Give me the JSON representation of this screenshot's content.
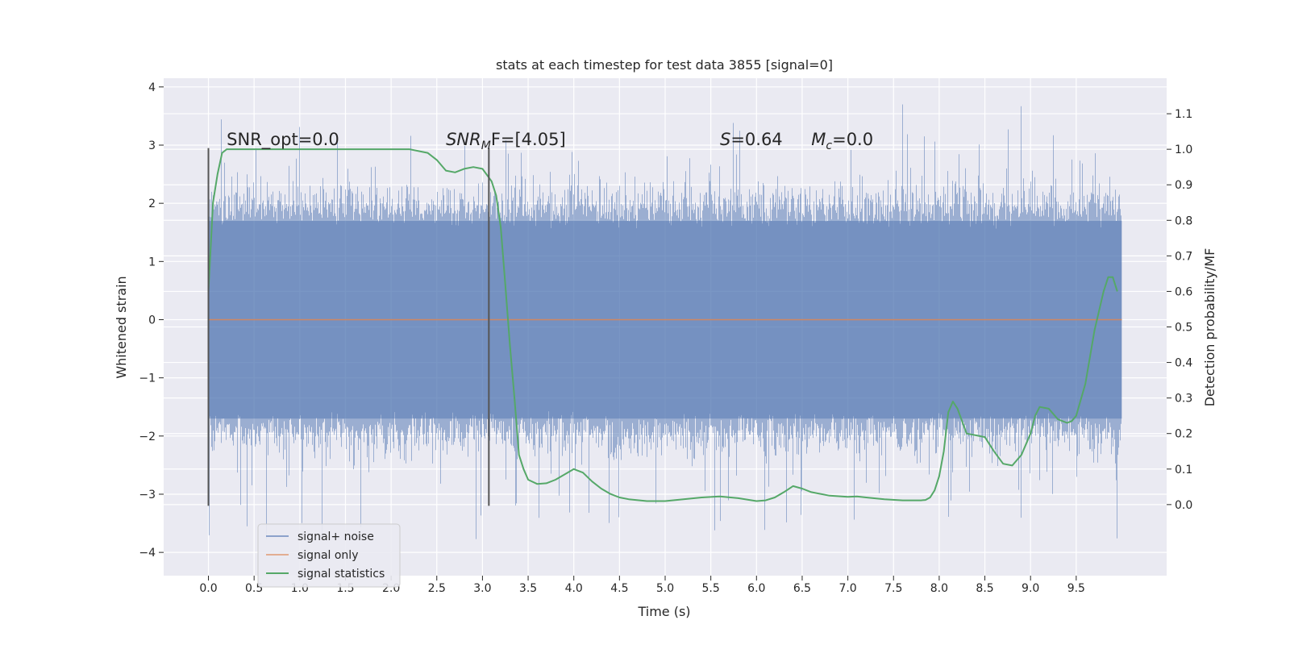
{
  "chart_data": {
    "type": "line",
    "title": "stats at each timestep for test data 3855 [signal=0]",
    "xlabel": "Time (s)",
    "ylabel_left": "Whitened strain",
    "ylabel_right": "Detection probability/MF",
    "xlim": [
      -0.49,
      10.49
    ],
    "ylim_left": [
      -4.4,
      4.15
    ],
    "ylim_right": [
      -0.2,
      1.2
    ],
    "x_ticks": [
      "0.0",
      "0.5",
      "1.0",
      "1.5",
      "2.0",
      "2.5",
      "3.0",
      "3.5",
      "4.0",
      "4.5",
      "5.0",
      "5.5",
      "6.0",
      "6.5",
      "7.0",
      "7.5",
      "8.0",
      "8.5",
      "9.0",
      "9.5"
    ],
    "x_tick_values": [
      0,
      0.5,
      1,
      1.5,
      2,
      2.5,
      3,
      3.5,
      4,
      4.5,
      5,
      5.5,
      6,
      6.5,
      7,
      7.5,
      8,
      8.5,
      9,
      9.5
    ],
    "y_left_ticks": [
      "−4",
      "−3",
      "−2",
      "−1",
      "0",
      "1",
      "2",
      "3",
      "4"
    ],
    "y_left_tick_values": [
      -4,
      -3,
      -2,
      -1,
      0,
      1,
      2,
      3,
      4
    ],
    "y_right_ticks": [
      "0.0",
      "0.1",
      "0.2",
      "0.3",
      "0.4",
      "0.5",
      "0.6",
      "0.7",
      "0.8",
      "0.9",
      "1.0",
      "1.1"
    ],
    "y_right_tick_values": [
      0,
      0.1,
      0.2,
      0.3,
      0.4,
      0.5,
      0.6,
      0.7,
      0.8,
      0.9,
      1.0,
      1.1
    ],
    "grid": true,
    "legend_position": "lower-left",
    "series": [
      {
        "name": "signal+ noise",
        "axis": "left",
        "color": "#4c72b0",
        "kind": "noise",
        "x_range": [
          0,
          10
        ],
        "envelope": {
          "typical_upper": 2.0,
          "typical_lower": -2.0,
          "max": 3.8,
          "min": -4.05
        }
      },
      {
        "name": "signal only",
        "axis": "left",
        "color": "#dd8452",
        "x": [
          0,
          10
        ],
        "y": [
          0,
          0
        ]
      },
      {
        "name": "signal statistics",
        "axis": "right",
        "color": "#55a868",
        "x": [
          0,
          0.05,
          0.1,
          0.15,
          0.2,
          0.3,
          0.5,
          1.0,
          1.5,
          2.0,
          2.2,
          2.4,
          2.5,
          2.6,
          2.7,
          2.8,
          2.9,
          3.0,
          3.1,
          3.15,
          3.2,
          3.25,
          3.3,
          3.35,
          3.4,
          3.45,
          3.5,
          3.6,
          3.7,
          3.8,
          3.9,
          4.0,
          4.1,
          4.2,
          4.3,
          4.4,
          4.5,
          4.6,
          4.8,
          5.0,
          5.2,
          5.4,
          5.6,
          5.8,
          6.0,
          6.1,
          6.2,
          6.3,
          6.4,
          6.5,
          6.6,
          6.8,
          7.0,
          7.1,
          7.2,
          7.4,
          7.6,
          7.8,
          7.85,
          7.9,
          7.95,
          8.0,
          8.05,
          8.1,
          8.15,
          8.2,
          8.3,
          8.4,
          8.5,
          8.6,
          8.7,
          8.8,
          8.9,
          9.0,
          9.05,
          9.1,
          9.2,
          9.3,
          9.4,
          9.45,
          9.5,
          9.6,
          9.7,
          9.8,
          9.85,
          9.9,
          9.95
        ],
        "y": [
          0.6,
          0.85,
          0.93,
          0.99,
          1.0,
          1.0,
          1.0,
          1.0,
          1.0,
          1.0,
          1.0,
          0.99,
          0.97,
          0.94,
          0.935,
          0.945,
          0.95,
          0.945,
          0.91,
          0.87,
          0.78,
          0.62,
          0.45,
          0.3,
          0.14,
          0.1,
          0.07,
          0.058,
          0.06,
          0.07,
          0.085,
          0.1,
          0.09,
          0.065,
          0.045,
          0.03,
          0.02,
          0.015,
          0.01,
          0.01,
          0.015,
          0.02,
          0.023,
          0.018,
          0.01,
          0.012,
          0.02,
          0.035,
          0.052,
          0.045,
          0.035,
          0.025,
          0.022,
          0.023,
          0.02,
          0.015,
          0.012,
          0.012,
          0.013,
          0.02,
          0.04,
          0.08,
          0.15,
          0.26,
          0.29,
          0.27,
          0.2,
          0.195,
          0.19,
          0.15,
          0.115,
          0.11,
          0.14,
          0.2,
          0.25,
          0.275,
          0.27,
          0.24,
          0.23,
          0.235,
          0.25,
          0.34,
          0.49,
          0.6,
          0.64,
          0.64,
          0.6
        ]
      }
    ],
    "vertical_markers": [
      {
        "x": 0.0,
        "y": [
          -3.2,
          2.95
        ],
        "color": "#555555"
      },
      {
        "x": 3.07,
        "y": [
          -3.2,
          2.95
        ],
        "color": "#555555"
      }
    ],
    "annotations": [
      {
        "x": 0.2,
        "y": 3.0,
        "text": "SNR_opt=0.0"
      },
      {
        "x": 2.6,
        "y": 3.0,
        "base": "SNR",
        "sub": "M",
        "rest": "F=[4.05]"
      },
      {
        "x": 5.6,
        "y": 3.0,
        "base": "S",
        "rest": "=0.64"
      },
      {
        "x": 6.6,
        "y": 3.0,
        "base": "M",
        "sub": "c",
        "rest": "=0.0"
      }
    ]
  }
}
